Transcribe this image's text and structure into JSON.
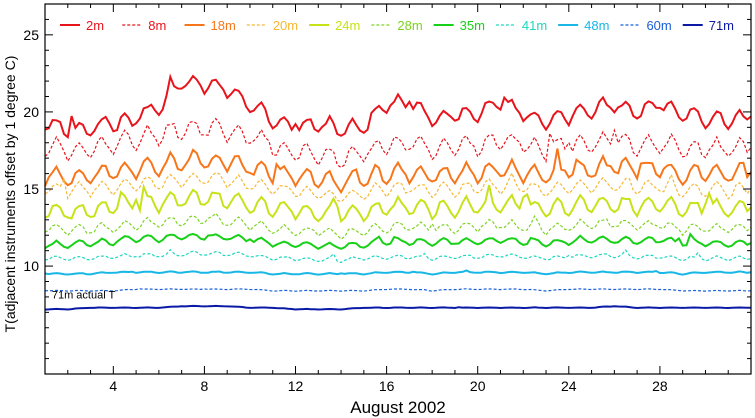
{
  "chart_data": {
    "type": "line",
    "xlabel": "August 2002",
    "ylabel": "T(adjacent instruments offset by 1 degree C)",
    "xlim": [
      1,
      32
    ],
    "ylim": [
      3,
      27
    ],
    "x_ticks": [
      4,
      8,
      12,
      16,
      20,
      24,
      28
    ],
    "y_ticks": [
      10,
      15,
      20,
      25
    ],
    "legend_position": "top",
    "annotations": [
      {
        "text": "71m actual T",
        "x": 1.3,
        "y": 7.9
      }
    ],
    "series": [
      {
        "name": "2m",
        "color": "#e8141c",
        "style": "solid",
        "width": 2.0,
        "base": 19.8,
        "amp": 1.0,
        "seed": 3,
        "x": [
          1,
          2,
          3,
          4,
          5,
          6,
          7,
          8,
          9,
          10,
          11,
          12,
          13,
          14,
          15,
          16,
          17,
          18,
          19,
          20,
          21,
          22,
          23,
          24,
          25,
          26,
          27,
          28,
          29,
          30,
          31,
          32
        ],
        "values": [
          19.2,
          18.8,
          18.9,
          19.1,
          19.6,
          20.3,
          21.9,
          21.8,
          21.5,
          20.4,
          19.5,
          19.1,
          19.2,
          18.9,
          19.0,
          20.6,
          20.5,
          19.6,
          19.8,
          20.0,
          20.6,
          19.9,
          19.3,
          19.8,
          20.1,
          20.5,
          20.0,
          20.6,
          19.8,
          19.6,
          19.5,
          19.7
        ]
      },
      {
        "name": "8m",
        "color": "#e8141c",
        "style": "dashed",
        "width": 1.2,
        "base": 18.4,
        "amp": 1.2,
        "seed": 11,
        "x": [
          1,
          2,
          3,
          4,
          5,
          6,
          7,
          8,
          9,
          10,
          11,
          12,
          13,
          14,
          15,
          16,
          17,
          18,
          19,
          20,
          21,
          22,
          23,
          24,
          25,
          26,
          27,
          28,
          29,
          30,
          31,
          32
        ],
        "values": [
          17.8,
          17.5,
          17.6,
          17.9,
          18.2,
          18.6,
          18.9,
          19.0,
          18.8,
          18.4,
          17.7,
          17.4,
          17.2,
          17.0,
          17.3,
          17.8,
          18.0,
          17.6,
          17.8,
          17.9,
          18.1,
          17.8,
          17.6,
          17.9,
          18.0,
          18.2,
          17.8,
          18.0,
          17.6,
          17.7,
          17.6,
          17.7
        ]
      },
      {
        "name": "18m",
        "color": "#f7761b",
        "style": "solid",
        "width": 2.0,
        "base": 16.6,
        "amp": 1.1,
        "seed": 17,
        "x": [
          1,
          2,
          3,
          4,
          5,
          6,
          7,
          8,
          9,
          10,
          11,
          12,
          13,
          14,
          15,
          16,
          17,
          18,
          19,
          20,
          21,
          22,
          23,
          24,
          25,
          26,
          27,
          28,
          29,
          30,
          31,
          32
        ],
        "values": [
          15.9,
          15.8,
          15.9,
          16.1,
          16.3,
          16.5,
          16.8,
          16.9,
          16.7,
          16.3,
          16.0,
          15.8,
          15.6,
          15.4,
          15.7,
          16.0,
          16.1,
          15.9,
          16.0,
          16.1,
          16.3,
          16.1,
          15.9,
          16.2,
          16.3,
          16.5,
          16.2,
          16.4,
          16.0,
          16.1,
          16.0,
          16.1
        ]
      },
      {
        "name": "20m",
        "color": "#f7b733",
        "style": "dashed",
        "width": 1.2,
        "base": 15.1,
        "amp": 0.8,
        "seed": 23,
        "x": [
          1,
          2,
          3,
          4,
          5,
          6,
          7,
          8,
          9,
          10,
          11,
          12,
          13,
          14,
          15,
          16,
          17,
          18,
          19,
          20,
          21,
          22,
          23,
          24,
          25,
          26,
          27,
          28,
          29,
          30,
          31,
          32
        ],
        "values": [
          15.0,
          14.9,
          15.0,
          15.1,
          15.3,
          15.4,
          15.6,
          15.7,
          15.6,
          15.3,
          15.0,
          14.8,
          14.7,
          14.5,
          14.8,
          15.0,
          15.1,
          14.9,
          15.0,
          15.1,
          15.2,
          15.1,
          14.9,
          15.1,
          15.2,
          15.3,
          15.1,
          15.2,
          14.9,
          15.0,
          14.9,
          15.0
        ]
      },
      {
        "name": "24m",
        "color": "#c8e21a",
        "style": "solid",
        "width": 2.0,
        "base": 13.9,
        "amp": 1.0,
        "seed": 29,
        "x": [
          1,
          2,
          3,
          4,
          5,
          6,
          7,
          8,
          9,
          10,
          11,
          12,
          13,
          14,
          15,
          16,
          17,
          18,
          19,
          20,
          21,
          22,
          23,
          24,
          25,
          26,
          27,
          28,
          29,
          30,
          31,
          32
        ],
        "values": [
          13.6,
          13.5,
          13.6,
          13.8,
          14.0,
          14.1,
          14.3,
          14.4,
          14.3,
          14.0,
          13.7,
          13.6,
          13.4,
          13.3,
          13.5,
          13.8,
          13.9,
          13.7,
          13.8,
          13.9,
          14.0,
          13.9,
          13.7,
          13.9,
          14.0,
          14.1,
          13.9,
          14.0,
          13.7,
          13.8,
          13.7,
          13.8
        ]
      },
      {
        "name": "28m",
        "color": "#7ed321",
        "style": "dashed",
        "width": 1.2,
        "base": 12.6,
        "amp": 0.6,
        "seed": 37,
        "x": [
          1,
          2,
          3,
          4,
          5,
          6,
          7,
          8,
          9,
          10,
          11,
          12,
          13,
          14,
          15,
          16,
          17,
          18,
          19,
          20,
          21,
          22,
          23,
          24,
          25,
          26,
          27,
          28,
          29,
          30,
          31,
          32
        ],
        "values": [
          12.4,
          12.3,
          12.4,
          12.5,
          12.7,
          12.8,
          12.9,
          13.0,
          12.9,
          12.7,
          12.4,
          12.3,
          12.2,
          12.1,
          12.3,
          12.5,
          12.6,
          12.4,
          12.5,
          12.6,
          12.7,
          12.6,
          12.4,
          12.6,
          12.7,
          12.8,
          12.6,
          12.7,
          12.4,
          12.5,
          12.4,
          12.5
        ]
      },
      {
        "name": "35m",
        "color": "#18d018",
        "style": "solid",
        "width": 2.0,
        "base": 11.6,
        "amp": 0.4,
        "seed": 41,
        "x": [
          1,
          2,
          3,
          4,
          5,
          6,
          7,
          8,
          9,
          10,
          11,
          12,
          13,
          14,
          15,
          16,
          17,
          18,
          19,
          20,
          21,
          22,
          23,
          24,
          25,
          26,
          27,
          28,
          29,
          30,
          31,
          32
        ],
        "values": [
          11.4,
          11.4,
          11.5,
          11.6,
          11.8,
          11.8,
          11.9,
          11.9,
          11.9,
          11.7,
          11.5,
          11.4,
          11.3,
          11.3,
          11.4,
          11.6,
          11.6,
          11.5,
          11.6,
          11.6,
          11.7,
          11.6,
          11.5,
          11.6,
          11.7,
          11.7,
          11.6,
          11.7,
          11.5,
          11.5,
          11.4,
          11.5
        ]
      },
      {
        "name": "41m",
        "color": "#1dd6c0",
        "style": "dashed",
        "width": 1.2,
        "base": 10.6,
        "amp": 0.25,
        "seed": 47,
        "x": [
          1,
          2,
          3,
          4,
          5,
          6,
          7,
          8,
          9,
          10,
          11,
          12,
          13,
          14,
          15,
          16,
          17,
          18,
          19,
          20,
          21,
          22,
          23,
          24,
          25,
          26,
          27,
          28,
          29,
          30,
          31,
          32
        ],
        "values": [
          10.5,
          10.5,
          10.5,
          10.6,
          10.7,
          10.7,
          10.8,
          10.8,
          10.8,
          10.7,
          10.5,
          10.5,
          10.4,
          10.4,
          10.5,
          10.6,
          10.6,
          10.5,
          10.6,
          10.6,
          10.7,
          10.6,
          10.5,
          10.6,
          10.7,
          10.7,
          10.6,
          10.6,
          10.5,
          10.5,
          10.5,
          10.5
        ]
      },
      {
        "name": "48m",
        "color": "#19b7e6",
        "style": "solid",
        "width": 2.0,
        "base": 9.55,
        "amp": 0.08,
        "seed": 53,
        "x": [
          1,
          2,
          3,
          4,
          5,
          6,
          7,
          8,
          9,
          10,
          11,
          12,
          13,
          14,
          15,
          16,
          17,
          18,
          19,
          20,
          21,
          22,
          23,
          24,
          25,
          26,
          27,
          28,
          29,
          30,
          31,
          32
        ],
        "values": [
          9.5,
          9.5,
          9.5,
          9.6,
          9.6,
          9.6,
          9.6,
          9.6,
          9.6,
          9.6,
          9.5,
          9.5,
          9.5,
          9.5,
          9.5,
          9.6,
          9.6,
          9.5,
          9.6,
          9.6,
          9.6,
          9.6,
          9.5,
          9.6,
          9.6,
          9.6,
          9.6,
          9.6,
          9.5,
          9.6,
          9.6,
          9.6
        ]
      },
      {
        "name": "60m",
        "color": "#1a5fd9",
        "style": "dashed",
        "width": 1.2,
        "base": 8.45,
        "amp": 0.04,
        "seed": 59,
        "x": [
          1,
          2,
          3,
          4,
          5,
          6,
          7,
          8,
          9,
          10,
          11,
          12,
          13,
          14,
          15,
          16,
          17,
          18,
          19,
          20,
          21,
          22,
          23,
          24,
          25,
          26,
          27,
          28,
          29,
          30,
          31,
          32
        ],
        "values": [
          8.4,
          8.4,
          8.4,
          8.4,
          8.5,
          8.5,
          8.5,
          8.5,
          8.5,
          8.5,
          8.4,
          8.4,
          8.4,
          8.4,
          8.4,
          8.5,
          8.5,
          8.4,
          8.5,
          8.5,
          8.5,
          8.5,
          8.4,
          8.5,
          8.5,
          8.5,
          8.5,
          8.5,
          8.4,
          8.4,
          8.4,
          8.4
        ]
      },
      {
        "name": "71m",
        "color": "#0b1aa6",
        "style": "solid",
        "width": 2.0,
        "base": 7.3,
        "amp": 0.03,
        "seed": 61,
        "x": [
          1,
          2,
          3,
          4,
          5,
          6,
          7,
          8,
          9,
          10,
          11,
          12,
          13,
          14,
          15,
          16,
          17,
          18,
          19,
          20,
          21,
          22,
          23,
          24,
          25,
          26,
          27,
          28,
          29,
          30,
          31,
          32
        ],
        "values": [
          7.2,
          7.2,
          7.3,
          7.3,
          7.3,
          7.3,
          7.4,
          7.4,
          7.4,
          7.3,
          7.3,
          7.2,
          7.2,
          7.2,
          7.3,
          7.3,
          7.3,
          7.3,
          7.3,
          7.3,
          7.3,
          7.3,
          7.3,
          7.3,
          7.3,
          7.4,
          7.3,
          7.3,
          7.3,
          7.3,
          7.3,
          7.3
        ]
      }
    ]
  }
}
